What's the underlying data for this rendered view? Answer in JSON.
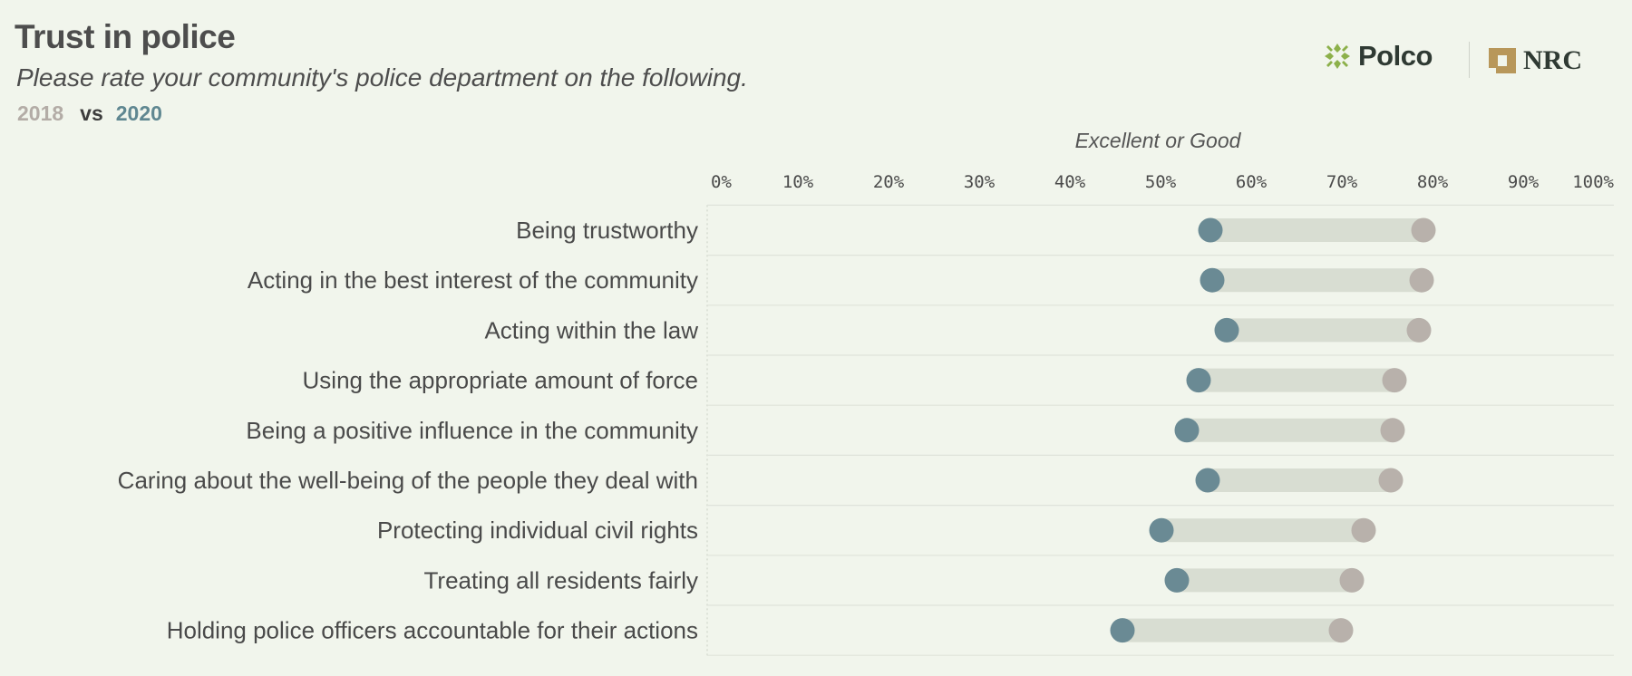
{
  "header": {
    "title": "Trust in police",
    "subtitle": "Please rate your community's police department on the following.",
    "legend": {
      "year_a": "2018",
      "vs": "vs",
      "year_b": "2020"
    }
  },
  "logos": {
    "polco": "Polco",
    "nrc": "NRC"
  },
  "colors": {
    "year_2018": "#b8b1ab",
    "year_2020": "#6a8a94",
    "range_bar": "#d8ddd2",
    "background": "#f1f5ec",
    "polco_green": "#8cb04a",
    "nrc_gold": "#b8975a"
  },
  "chart_data": {
    "type": "dumbbell",
    "title": "Trust in police",
    "xlabel": "Excellent or Good",
    "xlim": [
      0,
      100
    ],
    "ticks": [
      0,
      10,
      20,
      30,
      40,
      50,
      60,
      70,
      80,
      90,
      100
    ],
    "tick_labels": [
      "0%",
      "10%",
      "20%",
      "30%",
      "40%",
      "50%",
      "60%",
      "70%",
      "80%",
      "90%",
      "100%"
    ],
    "categories": [
      "Being trustworthy",
      "Acting in the best interest of the community",
      "Acting within the law",
      "Using the appropriate amount of force",
      "Being a positive influence in the community",
      "Caring about the well-being of the people they deal with",
      "Protecting individual civil rights",
      "Treating all residents fairly",
      "Holding police officers accountable for their actions"
    ],
    "series": [
      {
        "name": "2018",
        "values": [
          79,
          78.8,
          78.5,
          75.8,
          75.6,
          75.4,
          72.4,
          71.1,
          69.9
        ]
      },
      {
        "name": "2020",
        "values": [
          55.5,
          55.7,
          57.3,
          54.2,
          52.9,
          55.2,
          50.1,
          51.8,
          45.8
        ]
      }
    ]
  }
}
